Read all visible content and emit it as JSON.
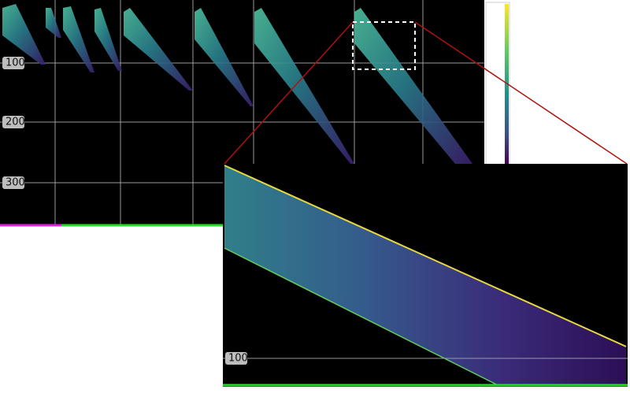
{
  "main_view": {
    "y_labels": [
      "100",
      "200",
      "300"
    ]
  },
  "zoom_view": {
    "y_labels": [
      "100"
    ]
  }
}
